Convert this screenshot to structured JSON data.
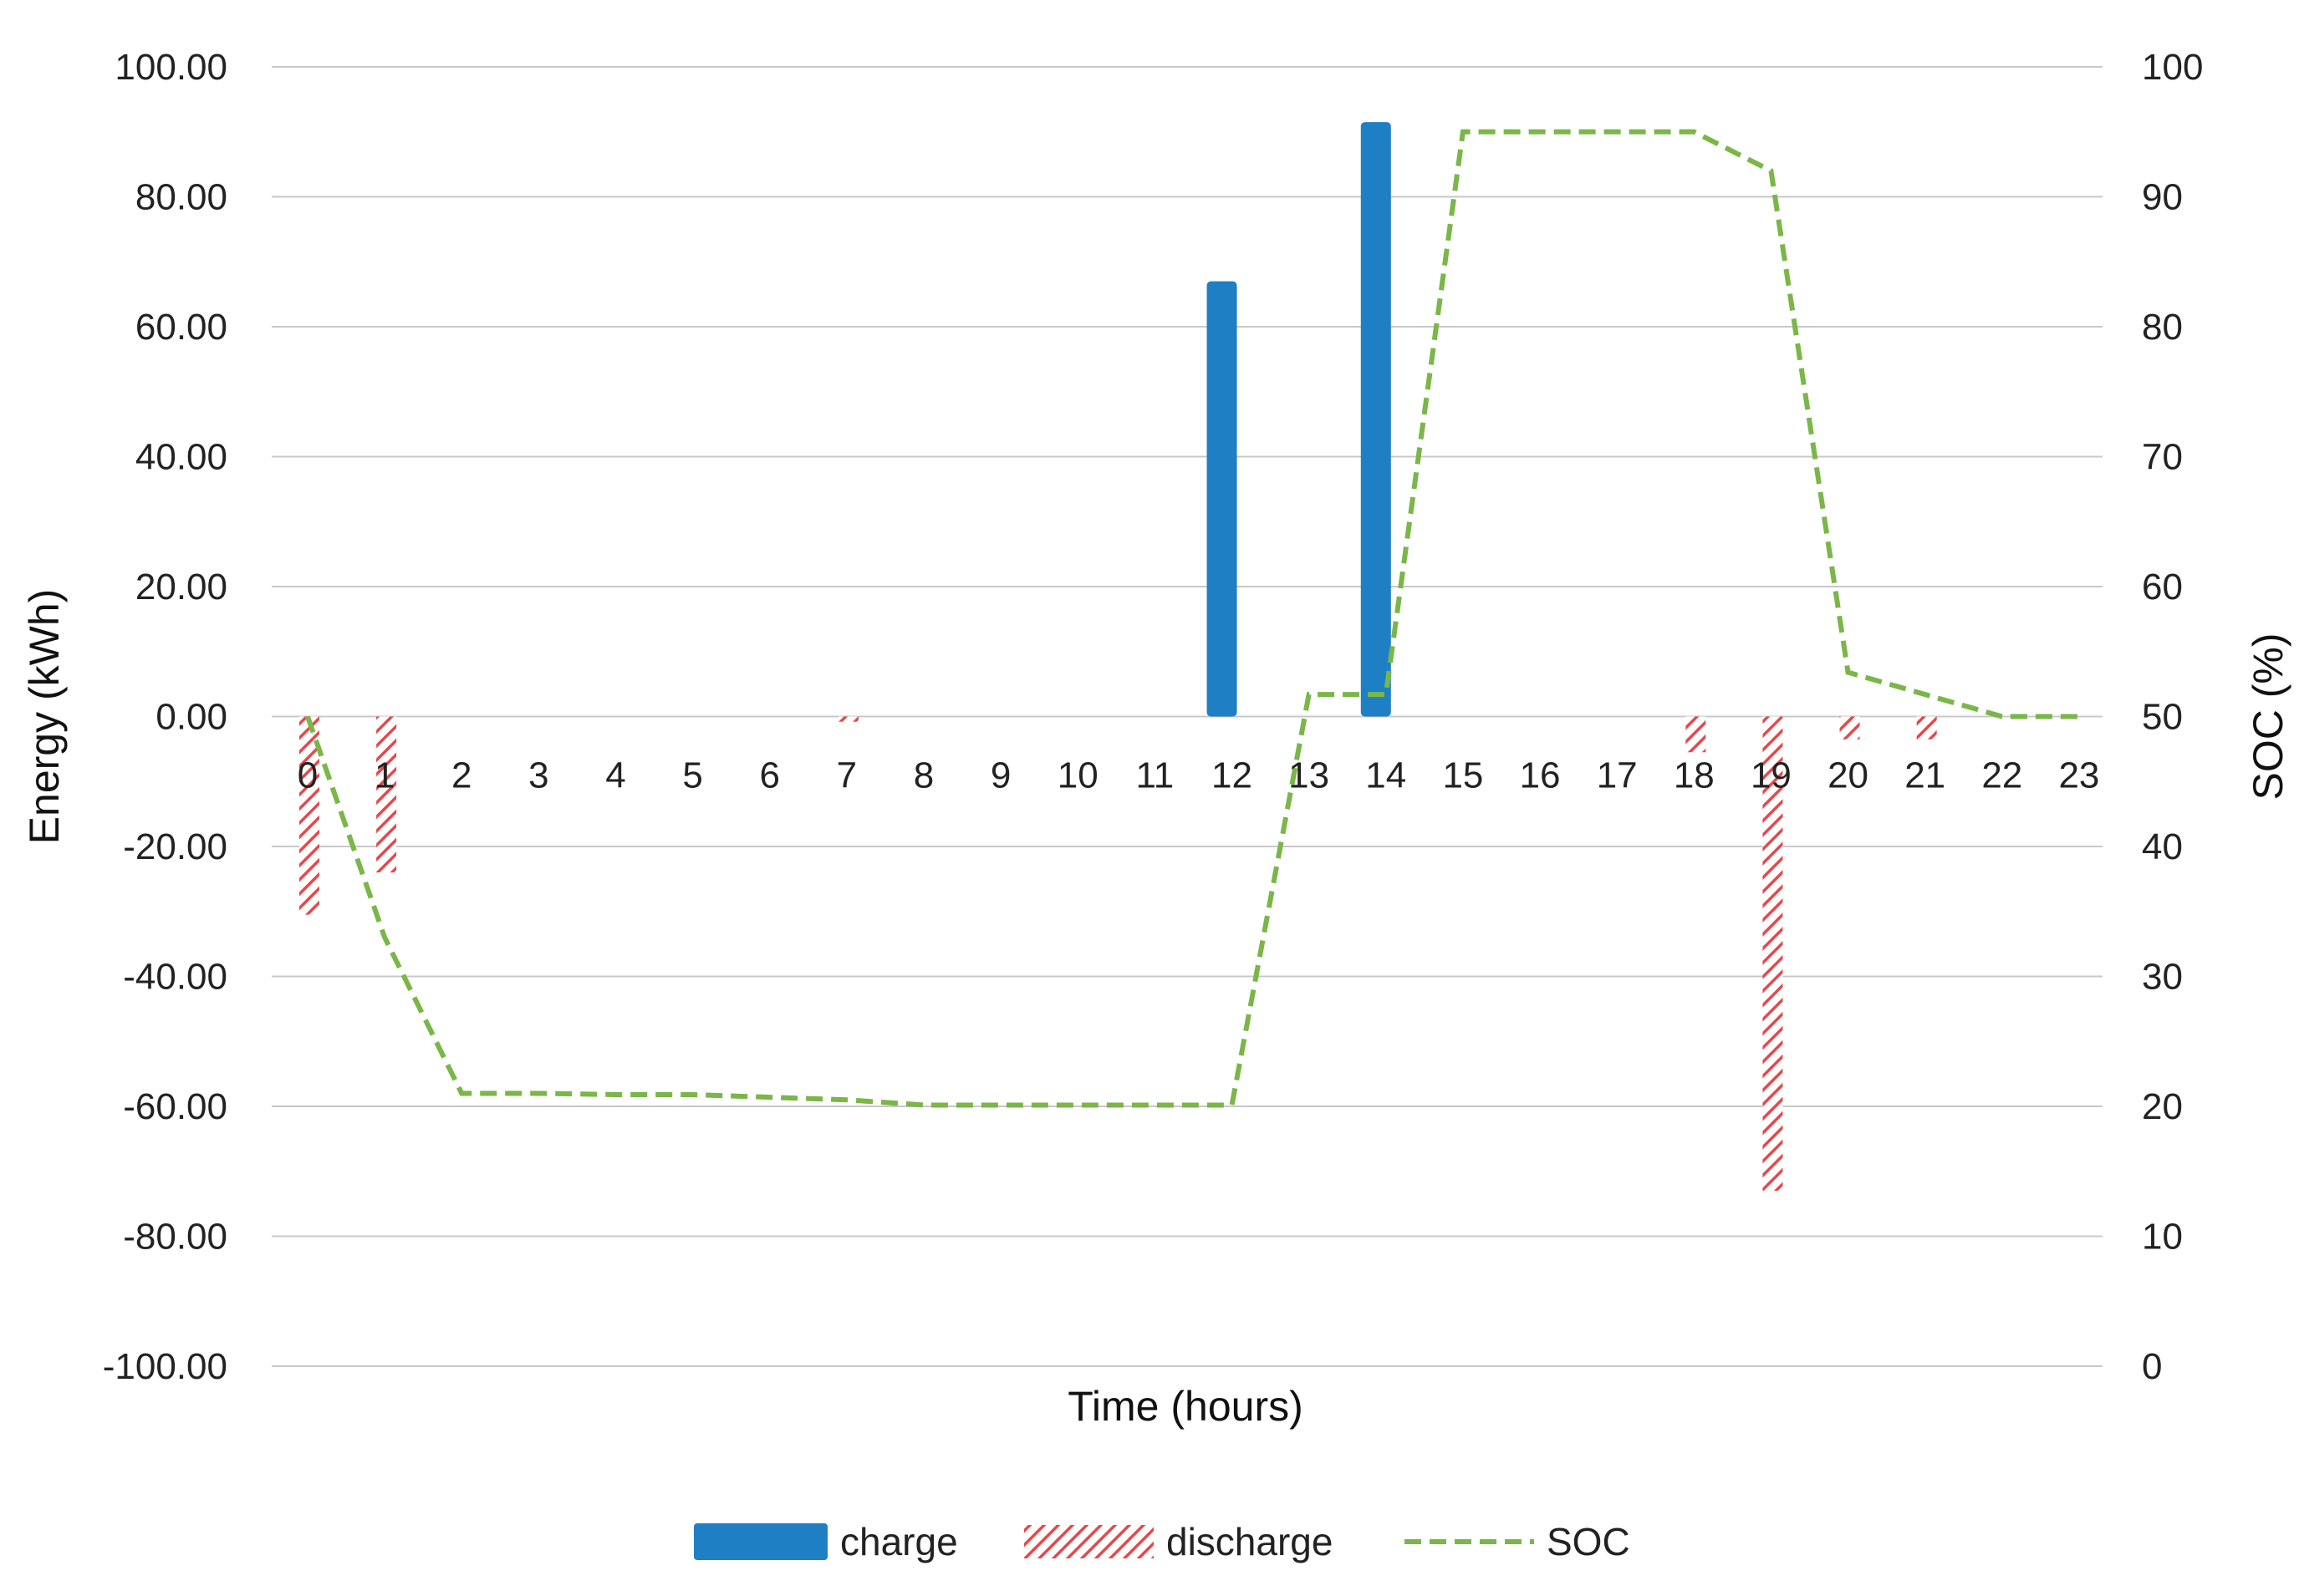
{
  "chart_data": {
    "type": "bar",
    "categories": [
      "0",
      "1",
      "2",
      "3",
      "4",
      "5",
      "6",
      "7",
      "8",
      "9",
      "10",
      "11",
      "12",
      "13",
      "14",
      "15",
      "16",
      "17",
      "18",
      "19",
      "20",
      "21",
      "22",
      "23"
    ],
    "series": [
      {
        "name": "charge",
        "kind": "bar",
        "axis": "left",
        "color": "#1f7fc4",
        "values": [
          0,
          0,
          0,
          0,
          0,
          0,
          0,
          0,
          0,
          0,
          0,
          0,
          67,
          0,
          91.5,
          0,
          0,
          0,
          0,
          0,
          0,
          0,
          0,
          0
        ]
      },
      {
        "name": "discharge",
        "kind": "bar-hatched",
        "axis": "left",
        "color": "#e8474a",
        "values": [
          -30.5,
          -24,
          0,
          0,
          0,
          0,
          0,
          -0.8,
          0,
          0,
          0,
          0,
          0,
          0,
          0,
          0,
          0,
          0,
          -5.5,
          -73,
          -3.5,
          -3.5,
          0,
          0
        ]
      },
      {
        "name": "SOC",
        "kind": "line-dashed",
        "axis": "right",
        "color": "#7ab648",
        "values": [
          50,
          33,
          21,
          21,
          20.9,
          20.9,
          20.7,
          20.5,
          20.1,
          20.1,
          20.1,
          20.1,
          20.1,
          51.7,
          51.7,
          95,
          95,
          95,
          95,
          92,
          53.4,
          51.7,
          50,
          50
        ]
      }
    ],
    "xlabel": "Time (hours)",
    "ylabel": "Energy (kWh)",
    "y2label": "SOC (%)",
    "ylim": [
      -100,
      100
    ],
    "y2lim": [
      0,
      100
    ],
    "yticks": [
      "100.00",
      "80.00",
      "60.00",
      "40.00",
      "20.00",
      "0.00",
      "-20.00",
      "-40.00",
      "-60.00",
      "-80.00",
      "-100.00"
    ],
    "y2ticks": [
      "100",
      "90",
      "80",
      "70",
      "60",
      "50",
      "40",
      "30",
      "20",
      "10",
      "0"
    ],
    "grid": true,
    "legend_position": "bottom"
  }
}
